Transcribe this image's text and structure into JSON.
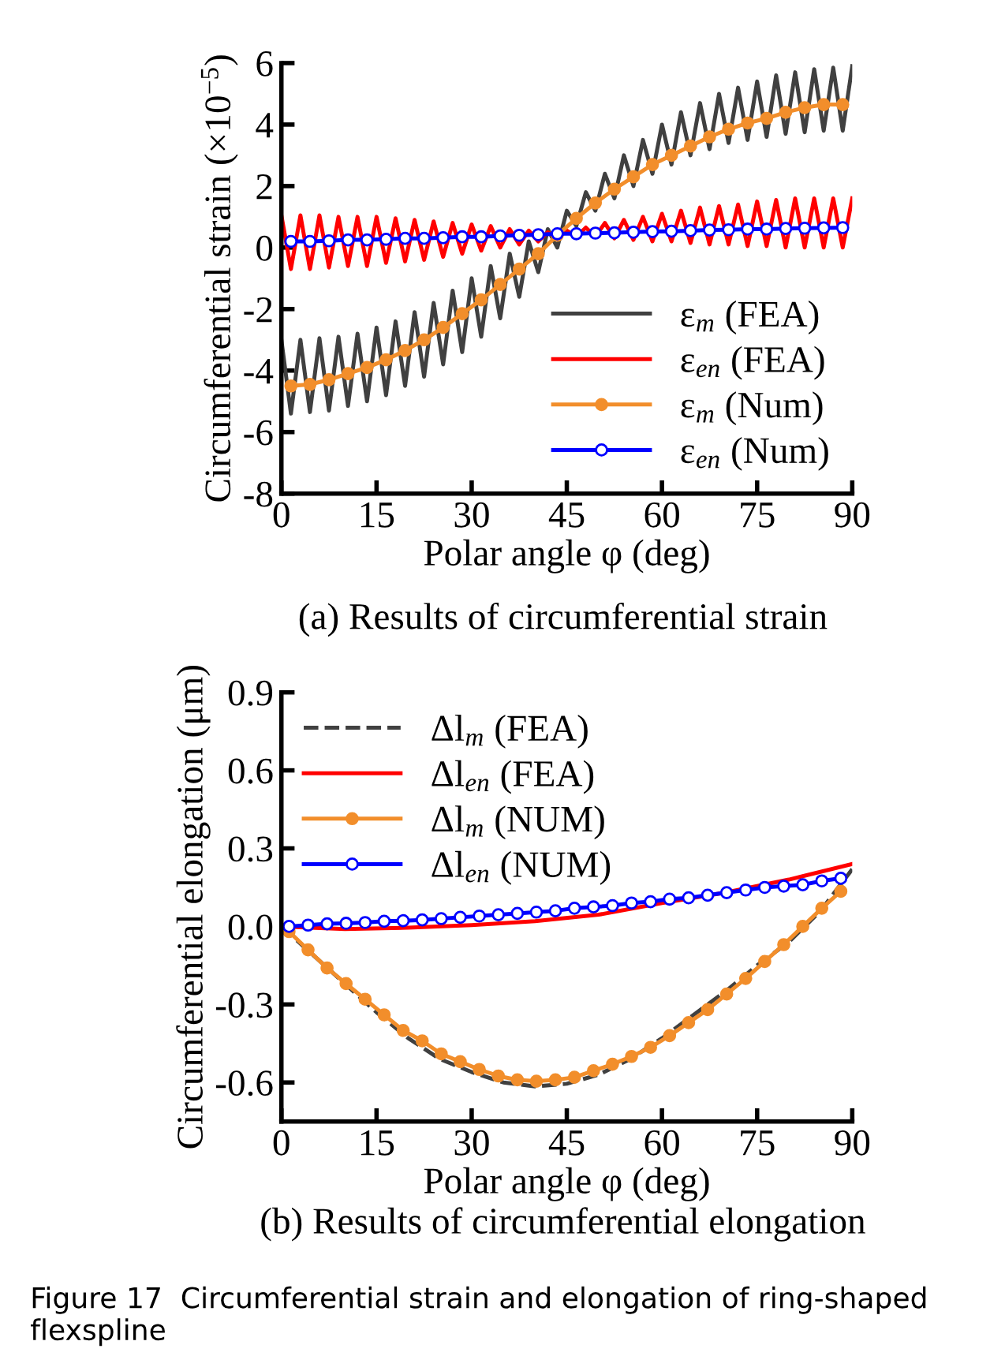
{
  "chart_data": [
    {
      "type": "line",
      "xlabel": "Polar angle φ (deg)",
      "ylabel": "Circumferential strain (×10$^{−5}$)",
      "annotations": [
        "(a) Results of circumferential strain"
      ],
      "xlim": [
        0,
        90
      ],
      "ylim": [
        -8,
        6
      ],
      "xticks": [
        0,
        15,
        30,
        45,
        60,
        75,
        90
      ],
      "yticks": [
        -8,
        -6,
        -4,
        -2,
        0,
        2,
        4,
        6
      ],
      "grid": false,
      "legend": "bottom right",
      "series": [
        {
          "name": "ε$_{m}$ (FEA)",
          "color": "#404040",
          "marker": "none",
          "line_style": "solid",
          "x": [
            0,
            1.5,
            3,
            4.5,
            6,
            7.5,
            9,
            10.5,
            12,
            13.5,
            15,
            16.5,
            18,
            19.5,
            21,
            22.5,
            24,
            25.5,
            27,
            28.5,
            30,
            31.5,
            33,
            34.5,
            36,
            37.5,
            39,
            40.5,
            42,
            43.5,
            45,
            46.5,
            48,
            49.5,
            51,
            52.5,
            54,
            55.5,
            57,
            58.5,
            60,
            61.5,
            63,
            64.5,
            66,
            67.5,
            69,
            70.5,
            72,
            73.5,
            75,
            76.5,
            78,
            79.5,
            81,
            82.5,
            84,
            85.5,
            87,
            88.5,
            90
          ],
          "values": [
            -3.0,
            -5.4,
            -3.0,
            -5.35,
            -2.95,
            -5.3,
            -2.9,
            -5.15,
            -2.8,
            -5.0,
            -2.6,
            -4.8,
            -2.4,
            -4.5,
            -2.1,
            -4.2,
            -1.8,
            -3.8,
            -1.4,
            -3.4,
            -1.0,
            -2.9,
            -0.6,
            -2.3,
            -0.2,
            -1.6,
            0.2,
            -0.8,
            0.6,
            0.0,
            1.2,
            0.7,
            1.8,
            1.2,
            2.4,
            1.6,
            3.0,
            2.0,
            3.5,
            2.4,
            4.0,
            2.7,
            4.4,
            3.0,
            4.7,
            3.2,
            5.0,
            3.4,
            5.2,
            3.5,
            5.4,
            3.6,
            5.6,
            3.7,
            5.7,
            3.75,
            5.8,
            3.8,
            5.85,
            3.8,
            5.9
          ]
        },
        {
          "name": "ε$_{en}$ (FEA)",
          "color": "#ff0000",
          "marker": "none",
          "line_style": "solid",
          "x": [
            0,
            1.5,
            3,
            4.5,
            6,
            7.5,
            9,
            10.5,
            12,
            13.5,
            15,
            16.5,
            18,
            19.5,
            21,
            22.5,
            24,
            25.5,
            27,
            28.5,
            30,
            31.5,
            33,
            34.5,
            36,
            37.5,
            39,
            40.5,
            42,
            43.5,
            45,
            46.5,
            48,
            49.5,
            51,
            52.5,
            54,
            55.5,
            57,
            58.5,
            60,
            61.5,
            63,
            64.5,
            66,
            67.5,
            69,
            70.5,
            72,
            73.5,
            75,
            76.5,
            78,
            79.5,
            81,
            82.5,
            84,
            85.5,
            87,
            88.5,
            90
          ],
          "values": [
            1.05,
            -0.7,
            1.05,
            -0.7,
            1.05,
            -0.65,
            1.0,
            -0.6,
            1.0,
            -0.6,
            1.0,
            -0.5,
            0.95,
            -0.45,
            0.9,
            -0.4,
            0.85,
            -0.3,
            0.8,
            -0.2,
            0.75,
            -0.1,
            0.7,
            0.0,
            0.6,
            0.1,
            0.55,
            0.2,
            0.5,
            0.3,
            0.55,
            0.35,
            0.65,
            0.35,
            0.8,
            0.3,
            0.9,
            0.25,
            1.0,
            0.2,
            1.1,
            0.2,
            1.2,
            0.15,
            1.3,
            0.1,
            1.35,
            0.1,
            1.4,
            0.05,
            1.5,
            0.05,
            1.55,
            0.0,
            1.6,
            0.0,
            1.6,
            0.0,
            1.6,
            0.0,
            1.6
          ]
        },
        {
          "name": "ε$_{m}$ (Num)",
          "color": "#f28e2b",
          "marker": "circle",
          "line_style": "solid",
          "x": [
            1.5,
            4.5,
            7.5,
            10.5,
            13.5,
            16.5,
            19.5,
            22.5,
            25.5,
            28.5,
            31.5,
            34.5,
            37.5,
            40.5,
            43.5,
            46.5,
            49.5,
            52.5,
            55.5,
            58.5,
            61.5,
            64.5,
            67.5,
            70.5,
            73.5,
            76.5,
            79.5,
            82.5,
            85.5,
            88.5
          ],
          "values": [
            -4.5,
            -4.45,
            -4.3,
            -4.1,
            -3.9,
            -3.65,
            -3.35,
            -3.0,
            -2.6,
            -2.15,
            -1.7,
            -1.2,
            -0.7,
            -0.2,
            0.4,
            0.95,
            1.45,
            1.9,
            2.3,
            2.7,
            3.0,
            3.3,
            3.6,
            3.85,
            4.05,
            4.2,
            4.4,
            4.55,
            4.65,
            4.65
          ]
        },
        {
          "name": "ε$_{en}$ (Num)",
          "color": "#0000ff",
          "marker": "circle",
          "line_style": "solid",
          "x": [
            1.5,
            4.5,
            7.5,
            10.5,
            13.5,
            16.5,
            19.5,
            22.5,
            25.5,
            28.5,
            31.5,
            34.5,
            37.5,
            40.5,
            43.5,
            46.5,
            49.5,
            52.5,
            55.5,
            58.5,
            61.5,
            64.5,
            67.5,
            70.5,
            73.5,
            76.5,
            79.5,
            82.5,
            85.5,
            88.5
          ],
          "values": [
            0.2,
            0.2,
            0.22,
            0.25,
            0.25,
            0.27,
            0.3,
            0.3,
            0.32,
            0.35,
            0.35,
            0.38,
            0.4,
            0.42,
            0.45,
            0.45,
            0.47,
            0.48,
            0.5,
            0.52,
            0.53,
            0.55,
            0.57,
            0.58,
            0.6,
            0.6,
            0.62,
            0.63,
            0.64,
            0.65
          ]
        }
      ]
    },
    {
      "type": "line",
      "xlabel": "Polar angle φ (deg)",
      "ylabel": "Circumferential elongation (μm)",
      "annotations": [
        "(b) Results of circumferential elongation",
        "Figure 17  Circumferential strain and elongation of ring-shaped flexspline"
      ],
      "xlim": [
        0,
        90
      ],
      "ylim": [
        -0.75,
        0.9
      ],
      "xticks": [
        0,
        15,
        30,
        45,
        60,
        75,
        90
      ],
      "yticks": [
        {
          "value": -0.6,
          "label": "-0.6"
        },
        {
          "value": -0.3,
          "label": "-0.3"
        },
        {
          "value": 0,
          "label": "0.0"
        },
        0.3,
        0.6,
        0.9
      ],
      "grid": false,
      "legend": "top left",
      "series": [
        {
          "name": "Δl$_{m}$ (FEA)",
          "color": "#404040",
          "marker": "none",
          "line_style": "dashed",
          "x": [
            0,
            5,
            10,
            15,
            20,
            25,
            30,
            35,
            40,
            45,
            50,
            55,
            60,
            65,
            70,
            75,
            80,
            85,
            90
          ],
          "values": [
            0.0,
            -0.11,
            -0.22,
            -0.33,
            -0.43,
            -0.51,
            -0.56,
            -0.6,
            -0.615,
            -0.605,
            -0.57,
            -0.51,
            -0.43,
            -0.34,
            -0.25,
            -0.15,
            -0.06,
            0.06,
            0.22
          ]
        },
        {
          "name": "Δl$_{en}$ (FEA)",
          "color": "#ff0000",
          "marker": "none",
          "line_style": "solid",
          "x": [
            0,
            10,
            20,
            30,
            40,
            50,
            60,
            70,
            80,
            90
          ],
          "values": [
            0.0,
            -0.01,
            -0.005,
            0.005,
            0.02,
            0.045,
            0.09,
            0.13,
            0.18,
            0.24
          ]
        },
        {
          "name": "Δl$_{m}$ (NUM)",
          "color": "#f28e2b",
          "marker": "circle",
          "line_style": "solid",
          "x": [
            1.2,
            4.2,
            7.2,
            10.2,
            13.2,
            16.2,
            19.2,
            22.2,
            25.2,
            28.2,
            31.2,
            34.2,
            37.2,
            40.2,
            43.2,
            46.2,
            49.2,
            52.2,
            55.2,
            58.2,
            61.2,
            64.2,
            67.2,
            70.2,
            73.2,
            76.2,
            79.2,
            82.2,
            85.2,
            88.2
          ],
          "values": [
            -0.02,
            -0.09,
            -0.16,
            -0.22,
            -0.28,
            -0.34,
            -0.4,
            -0.44,
            -0.49,
            -0.52,
            -0.55,
            -0.575,
            -0.59,
            -0.595,
            -0.59,
            -0.58,
            -0.555,
            -0.53,
            -0.5,
            -0.465,
            -0.42,
            -0.37,
            -0.32,
            -0.26,
            -0.2,
            -0.135,
            -0.07,
            0.0,
            0.07,
            0.135
          ]
        },
        {
          "name": "Δl$_{en}$ (NUM)",
          "color": "#0000ff",
          "marker": "circle",
          "line_style": "solid",
          "x": [
            1.2,
            4.2,
            7.2,
            10.2,
            13.2,
            16.2,
            19.2,
            22.2,
            25.2,
            28.2,
            31.2,
            34.2,
            37.2,
            40.2,
            43.2,
            46.2,
            49.2,
            52.2,
            55.2,
            58.2,
            61.2,
            64.2,
            67.2,
            70.2,
            73.2,
            76.2,
            79.2,
            82.2,
            85.2,
            88.2
          ],
          "values": [
            0.0,
            0.005,
            0.01,
            0.012,
            0.015,
            0.02,
            0.022,
            0.025,
            0.03,
            0.035,
            0.04,
            0.045,
            0.05,
            0.055,
            0.06,
            0.07,
            0.075,
            0.08,
            0.09,
            0.095,
            0.105,
            0.11,
            0.12,
            0.13,
            0.14,
            0.15,
            0.155,
            0.16,
            0.175,
            0.185
          ]
        }
      ]
    }
  ]
}
